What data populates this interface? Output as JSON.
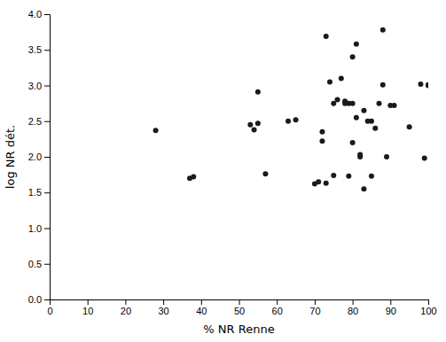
{
  "chart_data": {
    "type": "scatter",
    "x": [
      28,
      37,
      38,
      53,
      54,
      55,
      55,
      57,
      63,
      65,
      70,
      71,
      72,
      72,
      73,
      73,
      74,
      75,
      75,
      76,
      77,
      78,
      78,
      79,
      79,
      80,
      80,
      80,
      81,
      81,
      82,
      82,
      83,
      83,
      84,
      85,
      85,
      86,
      87,
      88,
      88,
      89,
      90,
      91,
      95,
      98,
      99,
      100,
      100
    ],
    "y": [
      2.37,
      1.7,
      1.72,
      2.45,
      2.38,
      2.91,
      2.47,
      1.76,
      2.5,
      2.52,
      1.62,
      1.65,
      2.22,
      2.35,
      3.69,
      1.63,
      3.05,
      2.75,
      1.74,
      2.8,
      3.1,
      2.75,
      2.78,
      2.75,
      1.73,
      3.4,
      2.75,
      2.2,
      3.58,
      2.55,
      2.0,
      2.03,
      1.55,
      2.65,
      2.5,
      1.73,
      2.5,
      2.4,
      2.75,
      3.78,
      3.01,
      2.0,
      2.72,
      2.72,
      2.42,
      3.02,
      1.98,
      3.01,
      3.0
    ],
    "xlabel": "% NR Renne",
    "ylabel": "log NR dét.",
    "xlim": [
      0,
      100
    ],
    "ylim": [
      0.0,
      4.0
    ],
    "xticks": [
      0,
      10,
      20,
      30,
      40,
      50,
      60,
      70,
      80,
      90,
      100
    ],
    "yticks": [
      {
        "value": 0.0,
        "label": "0.0"
      },
      0.5,
      {
        "value": 1.0,
        "label": "1.0"
      },
      1.5,
      {
        "value": 2.0,
        "label": "2.0"
      },
      2.5,
      {
        "value": 3.0,
        "label": "3.0"
      },
      3.5,
      {
        "value": 4.0,
        "label": "4.0"
      }
    ],
    "color": "#1a1a1a"
  }
}
